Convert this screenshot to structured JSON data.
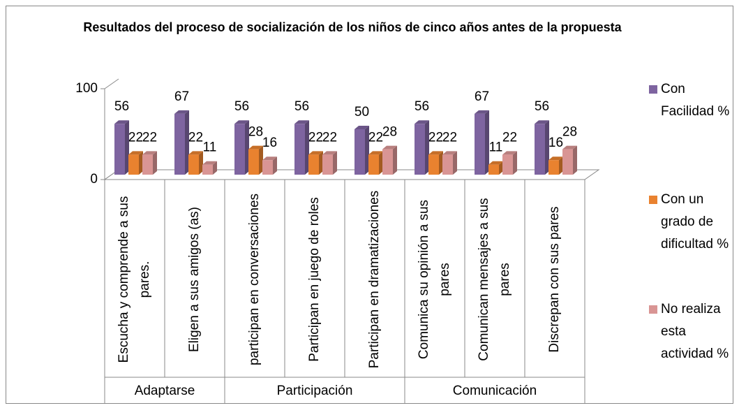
{
  "chart_data": {
    "type": "bar3d",
    "title": "Resultados del proceso de socialización de los niños de cinco años antes de la propuesta",
    "groups": [
      {
        "label": "Adaptarse",
        "categories": [
          "Escucha y comprende a sus pares.",
          "Eligen  a sus amigos (as)"
        ]
      },
      {
        "label": "Participación",
        "categories": [
          "participan en conversaciones",
          "Participan en juego de roles",
          "Participan  en dramatizaciones"
        ]
      },
      {
        "label": "Comunicación",
        "categories": [
          "Comunica su opinión a sus pares",
          "Comunican mensajes a sus pares",
          "Discrepan con sus pares"
        ]
      }
    ],
    "series": [
      {
        "name": "Con Facilidad %",
        "color": "#7e64a0",
        "values": [
          56,
          67,
          56,
          56,
          50,
          56,
          67,
          56
        ]
      },
      {
        "name": "Con un grado de dificultad %",
        "color": "#e9822f",
        "values": [
          22,
          22,
          28,
          22,
          22,
          22,
          11,
          16
        ]
      },
      {
        "name": "No realiza esta actividad %",
        "color": "#d99594",
        "values": [
          22,
          11,
          16,
          22,
          28,
          22,
          22,
          28
        ]
      }
    ],
    "ylim": [
      0,
      100
    ],
    "yticks": [
      0,
      100
    ],
    "legend": "right"
  }
}
